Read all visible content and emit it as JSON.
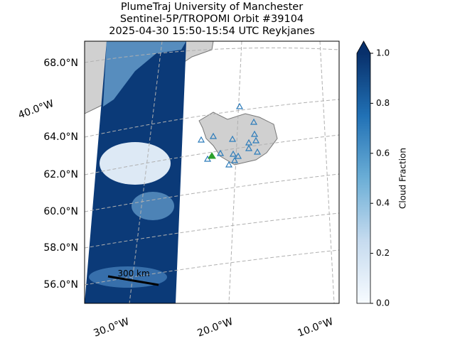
{
  "header": {
    "title_lines": [
      "PlumeTraj    University of Manchester",
      "Sentinel-5P/TROPOMI Orbit #39104",
      "2025-04-30   15:50-15:54 UTC   Reykjanes"
    ]
  },
  "map": {
    "lat_labels": [
      "68.0°N",
      "64.0°N",
      "62.0°N",
      "60.0°N",
      "58.0°N",
      "56.0°N"
    ],
    "lon_labels": [
      "40.0°W",
      "30.0°W",
      "20.0°W",
      "10.0°W"
    ],
    "scale_bar": "300 km"
  },
  "colorbar": {
    "label": "Cloud Fraction",
    "lim": [
      0,
      1
    ],
    "ticks": [
      {
        "value": 0,
        "label": "0.0"
      },
      {
        "value": 0.2,
        "label": "0.2"
      },
      {
        "value": 0.4,
        "label": "0.4"
      },
      {
        "value": 0.6,
        "label": "0.6"
      },
      {
        "value": 0.8,
        "label": "0.8"
      },
      {
        "value": 1,
        "label": "1.0"
      }
    ],
    "colors": [
      "#f7fbff",
      "#c6dbef",
      "#6baed6",
      "#2171b5",
      "#08306b"
    ]
  }
}
